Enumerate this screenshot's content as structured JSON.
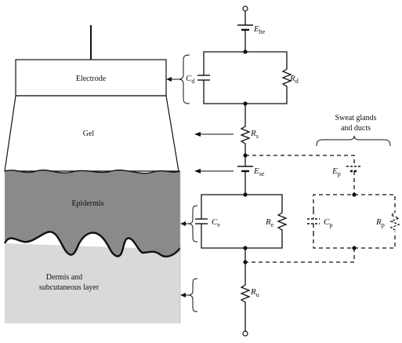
{
  "layers": {
    "electrode": "Electrode",
    "gel": "Gel",
    "epidermis": "Epidermis",
    "dermis_line1": "Dermis and",
    "dermis_line2": "subcutaneous layer"
  },
  "components": {
    "ehe": {
      "sym": "E",
      "sub": "he"
    },
    "cd": {
      "sym": "C",
      "sub": "d"
    },
    "rd": {
      "sym": "R",
      "sub": "d"
    },
    "rs": {
      "sym": "R",
      "sub": "s"
    },
    "ese": {
      "sym": "E",
      "sub": "se"
    },
    "ep": {
      "sym": "E",
      "sub": "p"
    },
    "ce": {
      "sym": "C",
      "sub": "e"
    },
    "re": {
      "sym": "R",
      "sub": "e"
    },
    "cp": {
      "sym": "C",
      "sub": "p"
    },
    "rp": {
      "sym": "R",
      "sub": "p"
    },
    "ru": {
      "sym": "R",
      "sub": "u"
    }
  },
  "sweat": {
    "line1": "Sweat glands",
    "line2": "and ducts"
  },
  "colors": {
    "epidermis": "#8a8a8a",
    "dermis": "#d9d9d9",
    "line": "#111111"
  }
}
